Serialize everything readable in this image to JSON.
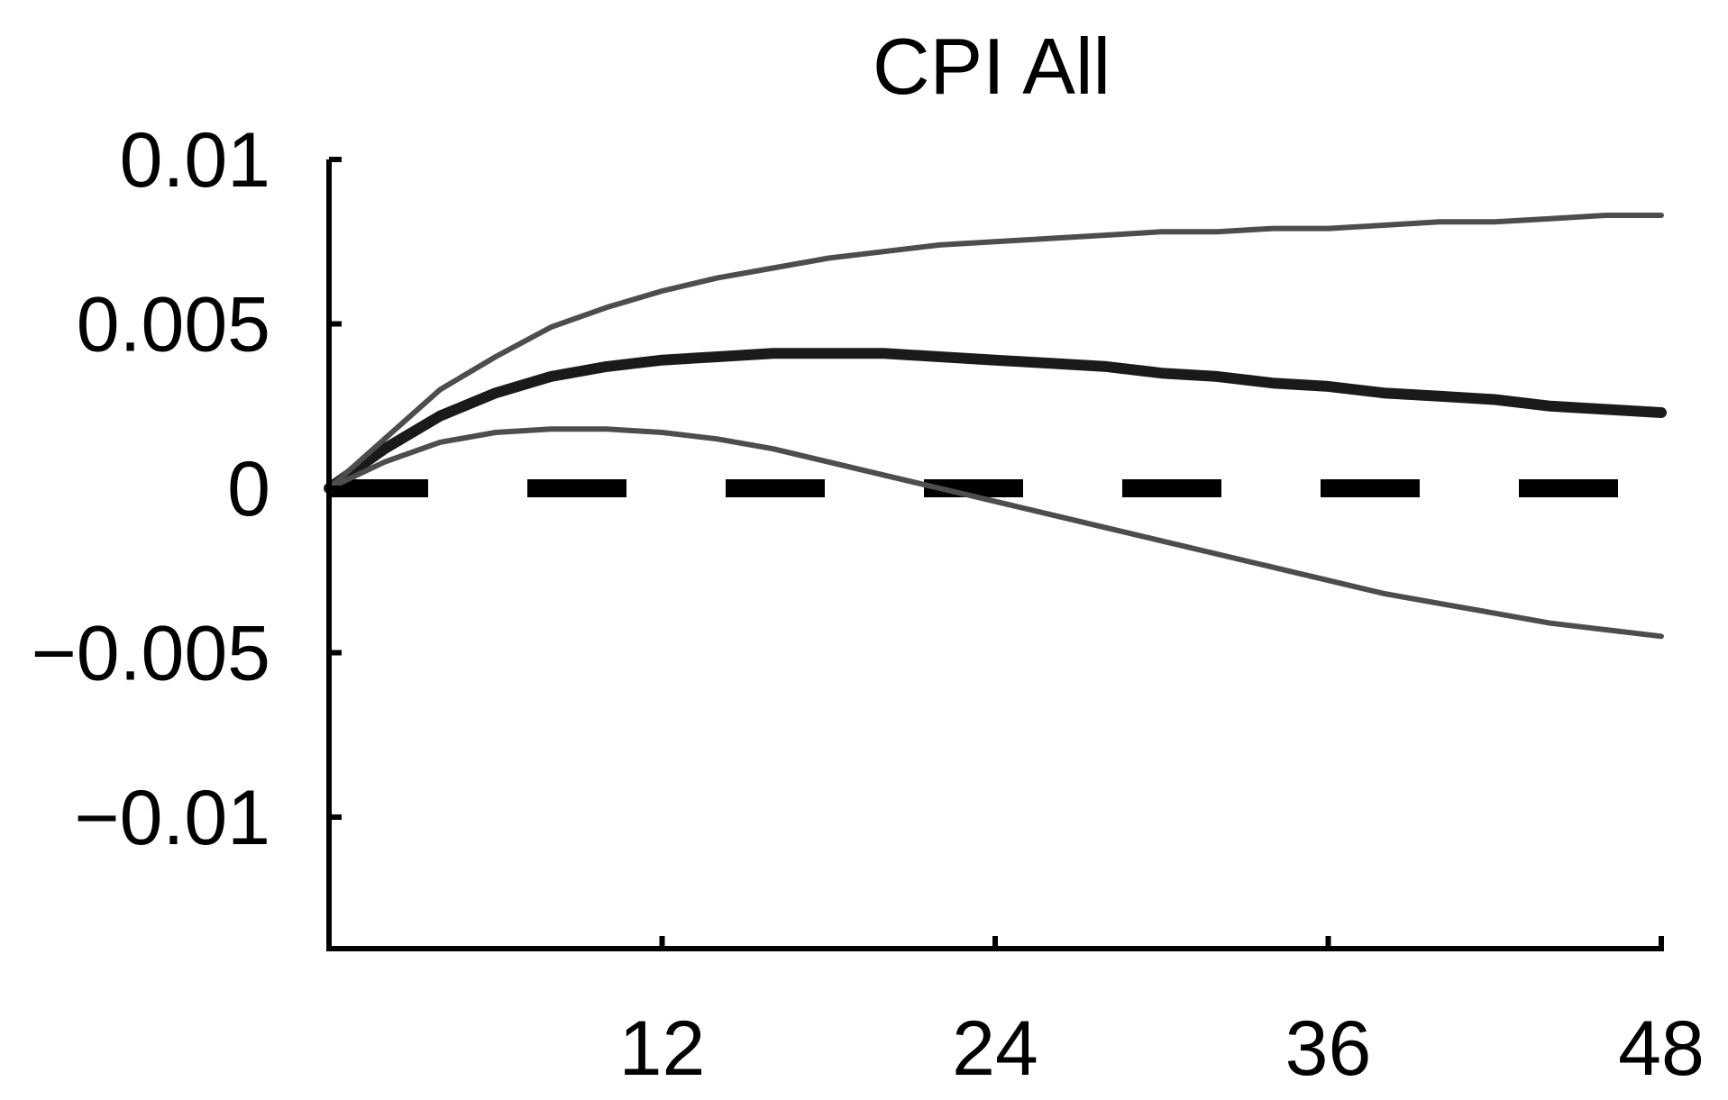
{
  "chart_data": {
    "type": "line",
    "title": "CPI All",
    "xlabel": "",
    "ylabel": "",
    "xlim": [
      0,
      48
    ],
    "ylim": [
      -0.014,
      0.01
    ],
    "x_ticks": [
      12,
      24,
      36,
      48
    ],
    "x_tick_labels": [
      "12",
      "24",
      "36",
      "48"
    ],
    "y_ticks": [
      0.01,
      0.005,
      0,
      -0.005,
      -0.01
    ],
    "y_tick_labels": [
      "0.01",
      "0.005",
      "0",
      "−0.005",
      "−0.01"
    ],
    "grid": false,
    "legend": "none",
    "zero_line": {
      "y": 0,
      "style": "dashed",
      "color": "#000000"
    },
    "x": [
      0,
      2,
      4,
      6,
      8,
      10,
      12,
      14,
      16,
      18,
      20,
      22,
      24,
      26,
      28,
      30,
      32,
      34,
      36,
      38,
      40,
      42,
      44,
      46,
      48
    ],
    "series": [
      {
        "color": "#1a1a1a",
        "values": [
          0,
          0.0012,
          0.0022,
          0.0029,
          0.0034,
          0.0037,
          0.0039,
          0.004,
          0.0041,
          0.0041,
          0.0041,
          0.004,
          0.0039,
          0.0038,
          0.0037,
          0.0035,
          0.0034,
          0.0032,
          0.0031,
          0.0029,
          0.0028,
          0.0027,
          0.0025,
          0.0024,
          0.0023
        ]
      },
      {
        "color": "#4d4d4d",
        "values": [
          0,
          0.0015,
          0.003,
          0.004,
          0.0049,
          0.0055,
          0.006,
          0.0064,
          0.0067,
          0.007,
          0.0072,
          0.0074,
          0.0075,
          0.0076,
          0.0077,
          0.0078,
          0.0078,
          0.0079,
          0.0079,
          0.008,
          0.0081,
          0.0081,
          0.0082,
          0.0083,
          0.0083
        ]
      },
      {
        "color": "#4d4d4d",
        "values": [
          0,
          0.0008,
          0.0014,
          0.0017,
          0.0018,
          0.0018,
          0.0017,
          0.0015,
          0.0012,
          0.0008,
          0.0004,
          0.0,
          -0.0004,
          -0.0008,
          -0.0012,
          -0.0016,
          -0.002,
          -0.0024,
          -0.0028,
          -0.0032,
          -0.0035,
          -0.0038,
          -0.0041,
          -0.0043,
          -0.0045
        ]
      }
    ]
  }
}
